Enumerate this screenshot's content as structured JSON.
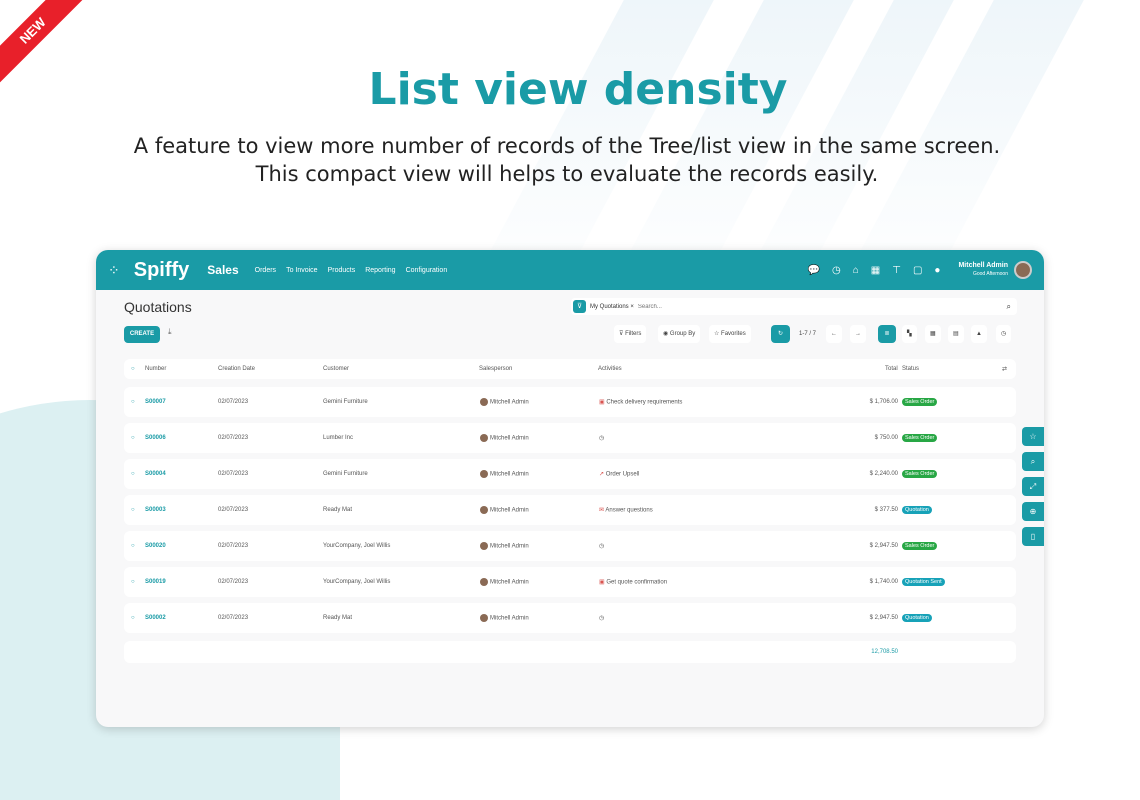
{
  "ribbon": "NEW",
  "headline": "List view density",
  "subtitle_lines": [
    "A feature to view more number of records of the Tree/list view in the same screen.",
    "This compact view will helps to evaluate the records easily."
  ],
  "app": {
    "logo": "Spiffy",
    "module": "Sales",
    "nav": [
      "Orders",
      "To Invoice",
      "Products",
      "Reporting",
      "Configuration"
    ],
    "user_name": "Mitchell Admin",
    "greeting": "Good Afternoon"
  },
  "page": {
    "title": "Quotations",
    "filter_chip": "My Quotations",
    "search_placeholder": "Search...",
    "create": "CREATE",
    "filters": "Filters",
    "group_by": "Group By",
    "favorites": "Favorites",
    "pager": "1-7 / 7"
  },
  "columns": [
    "Number",
    "Creation Date",
    "Customer",
    "Salesperson",
    "Activities",
    "Total",
    "Status"
  ],
  "rows": [
    {
      "number": "S00007",
      "date": "02/07/2023",
      "customer": "Gemini Furniture",
      "salesperson": "Mitchell Admin",
      "activity_icon": "calendar-icon",
      "activity": "Check delivery requirements",
      "total": "$ 1,706.00",
      "status": "Sales Order"
    },
    {
      "number": "S00006",
      "date": "02/07/2023",
      "customer": "Lumber Inc",
      "salesperson": "Mitchell Admin",
      "activity_icon": "clock-icon",
      "activity": "",
      "total": "$ 750.00",
      "status": "Sales Order"
    },
    {
      "number": "S00004",
      "date": "02/07/2023",
      "customer": "Gemini Furniture",
      "salesperson": "Mitchell Admin",
      "activity_icon": "chart-up-icon",
      "activity": "Order Upsell",
      "total": "$ 2,240.00",
      "status": "Sales Order"
    },
    {
      "number": "S00003",
      "date": "02/07/2023",
      "customer": "Ready Mat",
      "salesperson": "Mitchell Admin",
      "activity_icon": "envelope-icon",
      "activity": "Answer questions",
      "total": "$ 377.50",
      "status": "Quotation"
    },
    {
      "number": "S00020",
      "date": "02/07/2023",
      "customer": "YourCompany, Joel Willis",
      "salesperson": "Mitchell Admin",
      "activity_icon": "clock-icon",
      "activity": "",
      "total": "$ 2,947.50",
      "status": "Sales Order"
    },
    {
      "number": "S00019",
      "date": "02/07/2023",
      "customer": "YourCompany, Joel Willis",
      "salesperson": "Mitchell Admin",
      "activity_icon": "calendar-icon",
      "activity": "Get quote confirmation",
      "total": "$ 1,740.00",
      "status": "Quotation Sent"
    },
    {
      "number": "S00002",
      "date": "02/07/2023",
      "customer": "Ready Mat",
      "salesperson": "Mitchell Admin",
      "activity_icon": "clock-icon",
      "activity": "",
      "total": "$ 2,947.50",
      "status": "Quotation"
    }
  ],
  "grand_total": "12,708.50",
  "colors": {
    "teal": "#1a9ba6",
    "sales_order": "#28a745",
    "quotation": "#17a2b8",
    "ribbon": "#e8202a"
  }
}
